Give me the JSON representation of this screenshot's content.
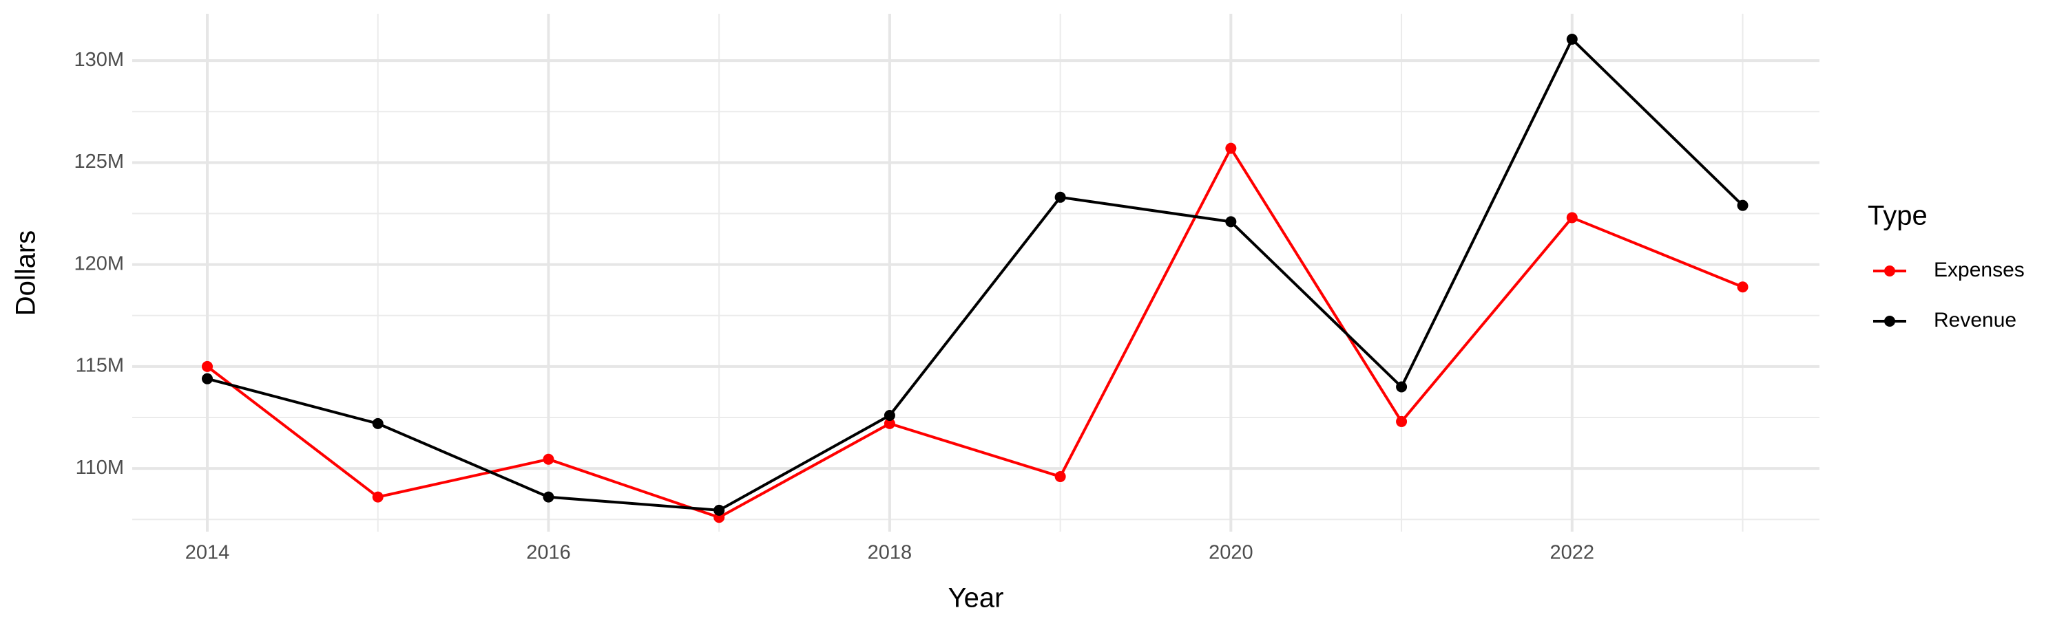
{
  "chart_data": {
    "type": "line",
    "x_label": "Year",
    "y_label": "Dollars",
    "x": [
      2014,
      2015,
      2016,
      2017,
      2018,
      2019,
      2020,
      2021,
      2022,
      2023
    ],
    "series": [
      {
        "name": "Expenses",
        "color": "#ff0000",
        "values": [
          115000000,
          108600000,
          110450000,
          107600000,
          112200000,
          109600000,
          125700000,
          112300000,
          122300000,
          118900000
        ]
      },
      {
        "name": "Revenue",
        "color": "#000000",
        "values": [
          114400000,
          112200000,
          108600000,
          107950000,
          112600000,
          123300000,
          122100000,
          114000000,
          131050000,
          122900000
        ]
      }
    ],
    "xlim": [
      2013.56,
      2023.45
    ],
    "xticks": [
      2014,
      2016,
      2018,
      2020,
      2022
    ],
    "ylim": [
      106900000,
      132300000
    ],
    "yticks": [
      {
        "value": 110000000,
        "label": "110M"
      },
      {
        "value": 115000000,
        "label": "115M"
      },
      {
        "value": 120000000,
        "label": "120M"
      },
      {
        "value": 125000000,
        "label": "125M"
      },
      {
        "value": 130000000,
        "label": "130M"
      }
    ],
    "grid": true,
    "legend": {
      "title": "Type",
      "position": "right"
    }
  }
}
